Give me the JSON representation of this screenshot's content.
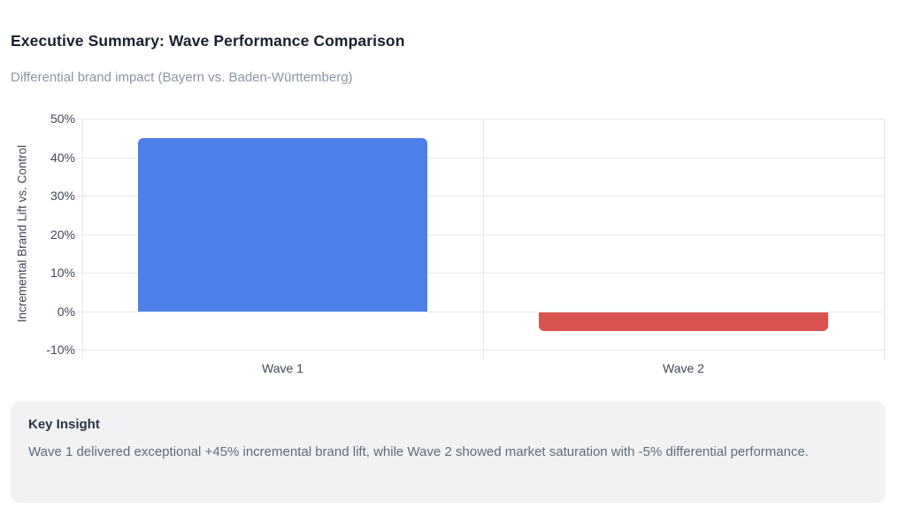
{
  "page": {
    "title": "Executive Summary: Wave Performance Comparison",
    "subtitle": "Differential brand impact (Bayern vs. Baden-Württemberg)"
  },
  "chart_data": {
    "type": "bar",
    "categories": [
      "Wave 1",
      "Wave 2"
    ],
    "values": [
      45,
      -5
    ],
    "title": "Executive Summary: Wave Performance Comparison",
    "subtitle": "Differential brand impact (Bayern vs. Baden-Württemberg)",
    "xlabel": "",
    "ylabel": "Incremental Brand Lift vs. Control",
    "ylim": [
      -10,
      50
    ],
    "yticks": [
      50,
      40,
      30,
      20,
      10,
      0,
      -10
    ],
    "ytick_labels": [
      "50%",
      "40%",
      "30%",
      "20%",
      "10%",
      "0%",
      "-10%"
    ],
    "bar_colors": [
      "#4c80e8",
      "#d9534f"
    ],
    "bar_width_fraction": 0.72,
    "grid": true,
    "legend": false
  },
  "insight": {
    "heading": "Key Insight",
    "body": "Wave 1 delivered exceptional +45% incremental brand lift, while Wave 2 showed market saturation with -5% differential performance."
  },
  "colors": {
    "bar_positive": "#4c80e8",
    "bar_negative": "#d9534f",
    "gridline": "#e4e7ea",
    "axis_text": "#3d4756",
    "title_text": "#18212f",
    "subtitle_text": "#8a94a3",
    "insight_bg": "#f1f2f4",
    "insight_heading": "#2b3547",
    "insight_body": "#5f6b7a"
  }
}
